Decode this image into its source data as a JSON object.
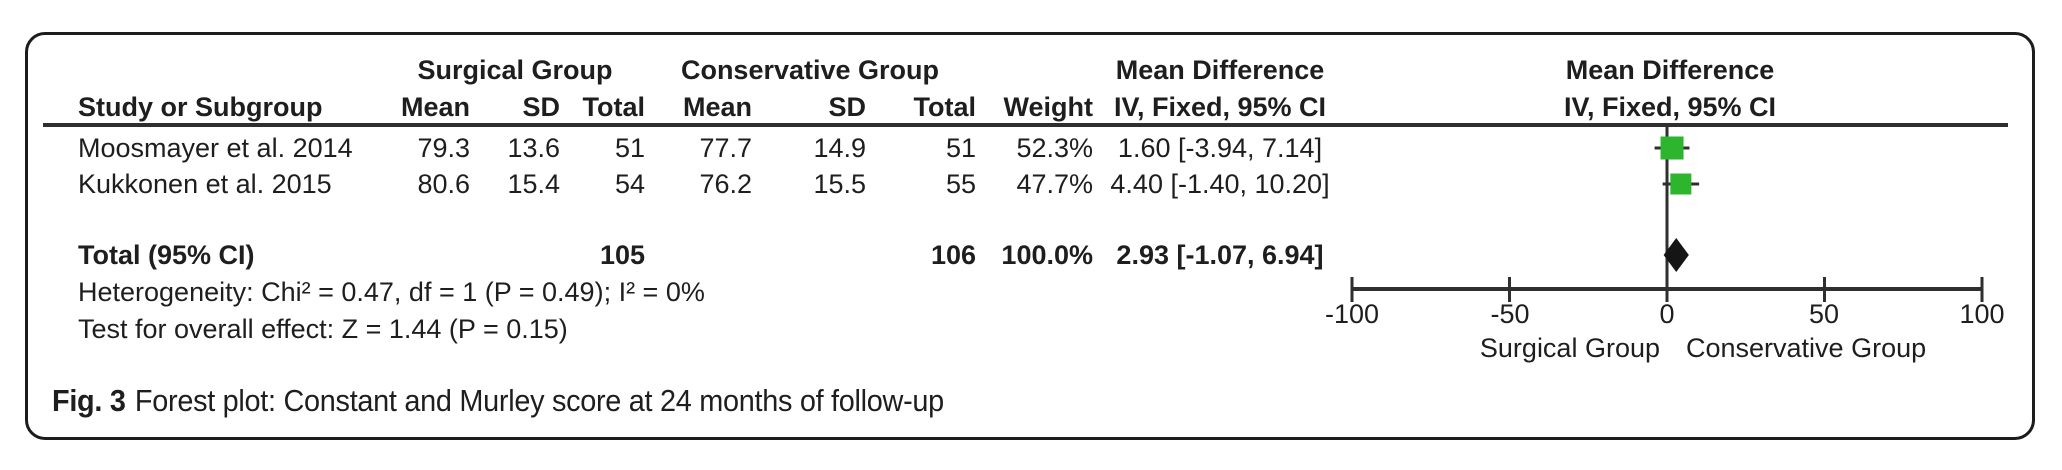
{
  "figure": {
    "caption_label": "Fig. 3",
    "caption_text": "Forest plot: Constant and Murley score at 24 months of follow-up"
  },
  "table": {
    "headers": {
      "study": "Study or Subgroup",
      "surgical_group": "Surgical Group",
      "conservative_group": "Conservative Group",
      "s_mean": "Mean",
      "s_sd": "SD",
      "s_total": "Total",
      "c_mean": "Mean",
      "c_sd": "SD",
      "c_total": "Total",
      "weight": "Weight",
      "md_title": "Mean Difference",
      "md_subtitle": "IV, Fixed, 95% CI",
      "plot_title": "Mean Difference",
      "plot_subtitle": "IV, Fixed, 95% CI"
    },
    "studies": [
      {
        "name": "Moosmayer et al. 2014",
        "s_mean": "79.3",
        "s_sd": "13.6",
        "s_total": "51",
        "c_mean": "77.7",
        "c_sd": "14.9",
        "c_total": "51",
        "weight": "52.3%",
        "md_ci": "1.60 [-3.94, 7.14]"
      },
      {
        "name": "Kukkonen et al. 2015",
        "s_mean": "80.6",
        "s_sd": "15.4",
        "s_total": "54",
        "c_mean": "76.2",
        "c_sd": "15.5",
        "c_total": "55",
        "weight": "47.7%",
        "md_ci": "4.40 [-1.40, 10.20]"
      }
    ],
    "total_row": {
      "label": "Total (95% CI)",
      "s_total": "105",
      "c_total": "106",
      "weight": "100.0%",
      "md_ci": "2.93 [-1.07, 6.94]"
    },
    "heterogeneity": "Heterogeneity: Chi² = 0.47, df = 1 (P = 0.49); I² = 0%",
    "overall_effect": "Test for overall effect: Z = 1.44 (P = 0.15)"
  },
  "chart_data": {
    "type": "forest",
    "effect_measure": "Mean Difference, IV, Fixed, 95% CI",
    "studies": [
      {
        "label": "Moosmayer et al. 2014",
        "estimate": 1.6,
        "ci_low": -3.94,
        "ci_high": 7.14,
        "weight_pct": 52.3
      },
      {
        "label": "Kukkonen et al. 2015",
        "estimate": 4.4,
        "ci_low": -1.4,
        "ci_high": 10.2,
        "weight_pct": 47.7
      }
    ],
    "total": {
      "label": "Total (95% CI)",
      "estimate": 2.93,
      "ci_low": -1.07,
      "ci_high": 6.94,
      "weight_pct": 100.0
    },
    "axis": {
      "xlim": [
        -100,
        100
      ],
      "ticks": [
        -100,
        -50,
        0,
        50,
        100
      ],
      "tick_labels": [
        "-100",
        "-50",
        "0",
        "50",
        "100"
      ],
      "left_label": "Surgical Group",
      "right_label": "Conservative Group"
    },
    "marker_color": "#2db52d",
    "diamond_color": "#151515",
    "line_color": "#2f2f2f"
  }
}
